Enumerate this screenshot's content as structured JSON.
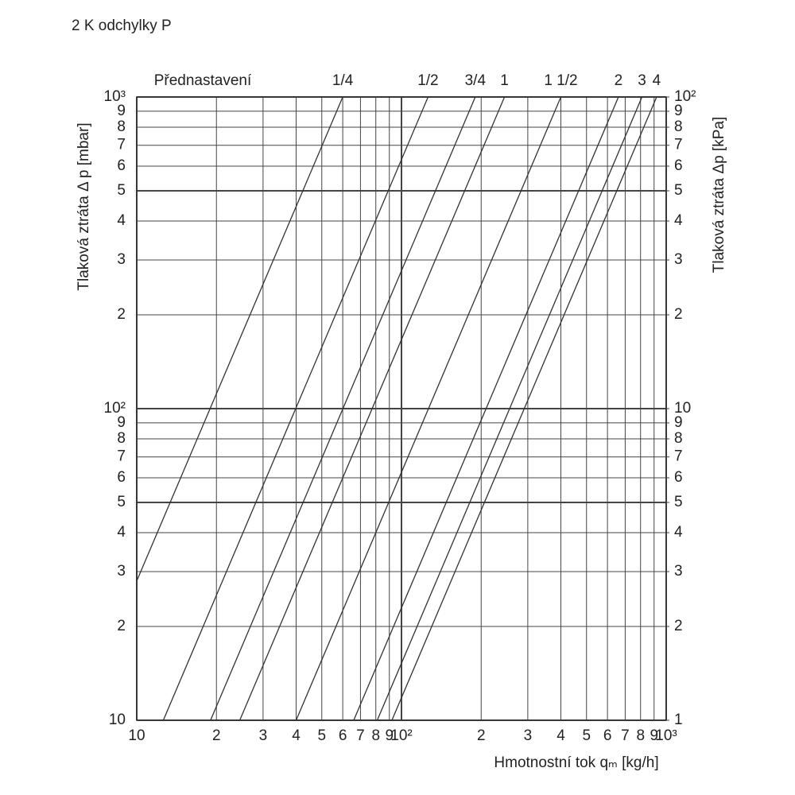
{
  "chart_data": {
    "type": "line",
    "title": "2 K odchylky P",
    "legend_title": "Přednastavení",
    "x_label": "Hmotnostní tok qₘ [kg/h]",
    "y_label": "Tlaková ztráta Δ p [mbar]",
    "y2_label": "Tlaková ztráta Δp [kPa]",
    "log_x": true,
    "log_y": true,
    "grid": true,
    "xlim": [
      10,
      1000
    ],
    "ylim": [
      10,
      1000
    ],
    "y2lim": [
      1,
      100
    ],
    "xticks": [
      10,
      {
        "value": 20,
        "label": "2"
      },
      {
        "value": 30,
        "label": "3"
      },
      {
        "value": 40,
        "label": "4"
      },
      {
        "value": 50,
        "label": "5"
      },
      {
        "value": 60,
        "label": "6"
      },
      {
        "value": 70,
        "label": "7"
      },
      {
        "value": 80,
        "label": "8"
      },
      {
        "value": 90,
        "label": "9"
      },
      {
        "value": 100,
        "label": "10²"
      },
      {
        "value": 200,
        "label": "2"
      },
      {
        "value": 300,
        "label": "3"
      },
      {
        "value": 400,
        "label": "4"
      },
      {
        "value": 500,
        "label": "5"
      },
      {
        "value": 600,
        "label": "6"
      },
      {
        "value": 700,
        "label": "7"
      },
      {
        "value": 800,
        "label": "8"
      },
      {
        "value": 900,
        "label": "9"
      },
      {
        "value": 1000,
        "label": "10³"
      }
    ],
    "yticks": [
      10,
      {
        "value": 20,
        "label": "2"
      },
      {
        "value": 30,
        "label": "3"
      },
      {
        "value": 40,
        "label": "4"
      },
      {
        "value": 50,
        "label": "5"
      },
      {
        "value": 60,
        "label": "6"
      },
      {
        "value": 70,
        "label": "7"
      },
      {
        "value": 80,
        "label": "8"
      },
      {
        "value": 90,
        "label": "9"
      },
      {
        "value": 100,
        "label": "10²"
      },
      {
        "value": 200,
        "label": "2"
      },
      {
        "value": 300,
        "label": "3"
      },
      {
        "value": 400,
        "label": "4"
      },
      {
        "value": 500,
        "label": "5"
      },
      {
        "value": 600,
        "label": "6"
      },
      {
        "value": 700,
        "label": "7"
      },
      {
        "value": 800,
        "label": "8"
      },
      {
        "value": 900,
        "label": "9"
      },
      {
        "value": 1000,
        "label": "10³"
      }
    ],
    "y2ticks": [
      1,
      2,
      3,
      4,
      5,
      6,
      7,
      8,
      9,
      10,
      {
        "value": 20,
        "label": "2"
      },
      {
        "value": 30,
        "label": "3"
      },
      {
        "value": 40,
        "label": "4"
      },
      {
        "value": 50,
        "label": "5"
      },
      {
        "value": 60,
        "label": "6"
      },
      {
        "value": 70,
        "label": "7"
      },
      {
        "value": 80,
        "label": "8"
      },
      {
        "value": 90,
        "label": "9"
      },
      {
        "value": 100,
        "label": "10²"
      }
    ],
    "series": [
      {
        "name": "1/4",
        "color": "#333333",
        "x": [
          10,
          60
        ],
        "values": [
          28,
          1000
        ]
      },
      {
        "name": "1/2",
        "color": "#333333",
        "x": [
          12.6,
          126
        ],
        "values": [
          10,
          1000
        ]
      },
      {
        "name": "3/4",
        "color": "#333333",
        "x": [
          19,
          190
        ],
        "values": [
          10,
          1000
        ]
      },
      {
        "name": "1",
        "color": "#333333",
        "x": [
          24.5,
          245
        ],
        "values": [
          10,
          1000
        ]
      },
      {
        "name": "1 1/2",
        "color": "#333333",
        "x": [
          40,
          400
        ],
        "values": [
          10,
          1000
        ]
      },
      {
        "name": "2",
        "color": "#333333",
        "x": [
          66,
          660
        ],
        "values": [
          10,
          1000
        ]
      },
      {
        "name": "3",
        "color": "#333333",
        "x": [
          81,
          810
        ],
        "values": [
          10,
          1000
        ]
      },
      {
        "name": "4",
        "color": "#333333",
        "x": [
          92,
          920
        ],
        "values": [
          10,
          1000
        ]
      }
    ]
  }
}
